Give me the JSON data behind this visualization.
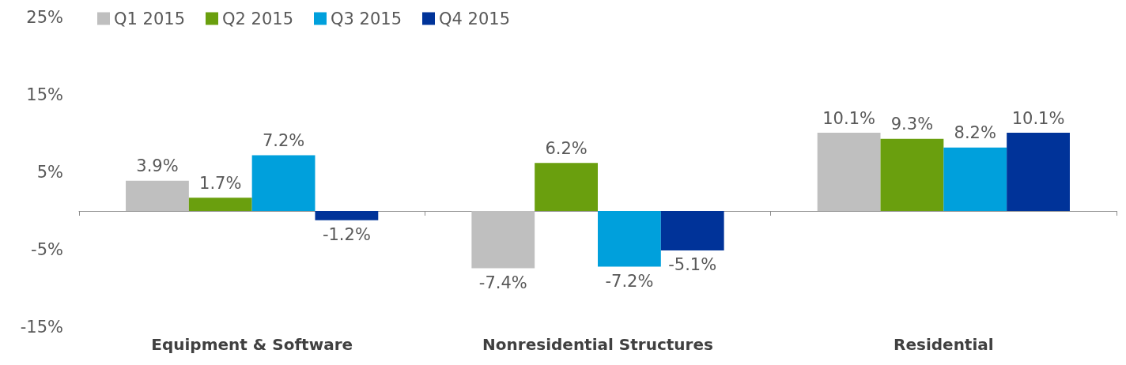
{
  "chart_data": {
    "type": "bar",
    "categories": [
      "Equipment & Software",
      "Nonresidential Structures",
      "Residential"
    ],
    "series": [
      {
        "name": "Q1 2015",
        "color": "#bfbfbf",
        "values": [
          3.9,
          -7.4,
          10.1
        ],
        "value_labels": [
          "3.9%",
          "-7.4%",
          "10.1%"
        ]
      },
      {
        "name": "Q2 2015",
        "color": "#6a9f0e",
        "values": [
          1.7,
          6.2,
          9.3
        ],
        "value_labels": [
          "1.7%",
          "6.2%",
          "9.3%"
        ]
      },
      {
        "name": "Q3 2015",
        "color": "#00a0dc",
        "values": [
          7.2,
          -7.2,
          8.2
        ],
        "value_labels": [
          "7.2%",
          "-7.2%",
          "8.2%"
        ]
      },
      {
        "name": "Q4 2015",
        "color": "#003399",
        "values": [
          -1.2,
          -5.1,
          10.1
        ],
        "value_labels": [
          "-1.2%",
          "-5.1%",
          "10.1%"
        ]
      }
    ],
    "ylim": [
      -15,
      25
    ],
    "yticks": [
      {
        "value": -15,
        "label": "-15%"
      },
      {
        "value": -5,
        "label": "-5%"
      },
      {
        "value": 5,
        "label": "5%"
      },
      {
        "value": 15,
        "label": "15%"
      },
      {
        "value": 25,
        "label": "25%"
      }
    ],
    "grid": false,
    "legend": "top left"
  }
}
